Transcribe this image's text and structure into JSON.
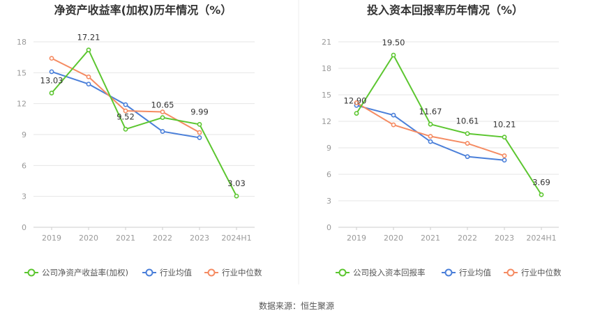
{
  "source_text": "数据来源：恒生聚源",
  "colors": {
    "company": "#5cc630",
    "industry_avg": "#4a7fd9",
    "industry_median": "#f58b62",
    "grid": "#e6e6e6",
    "axis": "#999999",
    "title": "#333333",
    "label": "#333333"
  },
  "chart_data": [
    {
      "type": "line",
      "title": "净资产收益率(加权)历年情况（%）",
      "categories": [
        "2019",
        "2020",
        "2021",
        "2022",
        "2023",
        "2024H1"
      ],
      "ylim": [
        0,
        18
      ],
      "yticks": [
        0,
        3,
        6,
        9,
        12,
        15,
        18
      ],
      "grid": true,
      "legend_position": "bottom-left",
      "series": [
        {
          "name": "公司净资产收益率(加权)",
          "color_key": "company",
          "labeled": true,
          "values": [
            13.03,
            17.21,
            9.52,
            10.65,
            9.99,
            3.03
          ],
          "labels": [
            "13.03",
            "17.21",
            "9.52",
            "10.65",
            "9.99",
            "3.03"
          ]
        },
        {
          "name": "行业均值",
          "color_key": "industry_avg",
          "labeled": false,
          "values": [
            15.1,
            13.9,
            11.9,
            9.3,
            8.7,
            null
          ]
        },
        {
          "name": "行业中位数",
          "color_key": "industry_median",
          "labeled": false,
          "values": [
            16.4,
            14.6,
            11.3,
            11.2,
            9.2,
            null
          ]
        }
      ]
    },
    {
      "type": "line",
      "title": "投入资本回报率历年情况（%）",
      "categories": [
        "2019",
        "2020",
        "2021",
        "2022",
        "2023",
        "2024H1"
      ],
      "ylim": [
        0,
        21
      ],
      "yticks": [
        0,
        3,
        6,
        9,
        12,
        15,
        18,
        21
      ],
      "grid": true,
      "legend_position": "bottom-left",
      "series": [
        {
          "name": "公司投入资本回报率",
          "color_key": "company",
          "labeled": true,
          "values": [
            12.9,
            19.5,
            11.67,
            10.61,
            10.21,
            3.69
          ],
          "labels": [
            "12.90",
            "19.50",
            "11.67",
            "10.61",
            "10.21",
            "3.69"
          ]
        },
        {
          "name": "行业均值",
          "color_key": "industry_avg",
          "labeled": false,
          "values": [
            13.8,
            12.7,
            9.7,
            8.0,
            7.6,
            null
          ]
        },
        {
          "name": "行业中位数",
          "color_key": "industry_median",
          "labeled": false,
          "values": [
            14.1,
            11.6,
            10.3,
            9.5,
            8.1,
            null
          ]
        }
      ]
    }
  ]
}
